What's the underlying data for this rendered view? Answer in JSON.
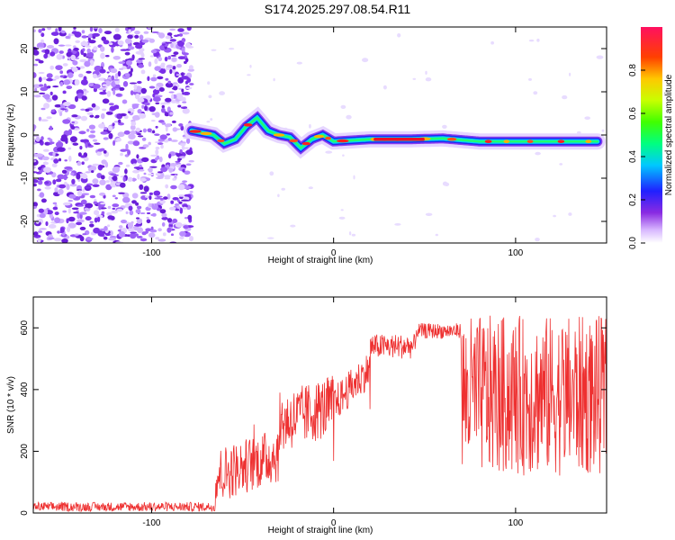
{
  "page": {
    "title": "S174.2025.297.08.54.R11"
  },
  "colors": {
    "snr_line": "#ee3030",
    "axis": "#000000",
    "background": "#ffffff"
  },
  "chart_data": [
    {
      "type": "heatmap",
      "title": "S174.2025.297.08.54.R11",
      "xlabel": "Height of straight line (km)",
      "ylabel": "Frequency (Hz)",
      "xlim": [
        -165,
        150
      ],
      "ylim": [
        -25,
        25
      ],
      "xticks": [
        -100,
        0,
        100
      ],
      "xtick_labels": [
        "-100",
        "0",
        "100"
      ],
      "yticks": [
        -20,
        -10,
        0,
        10,
        20
      ],
      "ytick_labels": [
        "-20",
        "-10",
        "0",
        "10",
        "20"
      ],
      "colorbar": {
        "label": "Normalized spectral amplitude",
        "range": [
          0,
          1
        ],
        "ticks": [
          0.0,
          0.2,
          0.4,
          0.6,
          0.8
        ],
        "tick_labels": [
          "0.0",
          "0.2",
          "0.4",
          "0.6",
          "0.8"
        ]
      },
      "noise_region_x": [
        -165,
        -78
      ],
      "tone_track": {
        "x": [
          -78,
          -72,
          -66,
          -60,
          -54,
          -48,
          -42,
          -36,
          -30,
          -24,
          -18,
          -12,
          -6,
          0,
          20,
          40,
          60,
          80,
          100,
          120,
          145
        ],
        "freq_hz": [
          1,
          0.5,
          0,
          -2,
          -1,
          2,
          4,
          1,
          0,
          -0.5,
          -3,
          -1,
          0,
          -1.5,
          -1,
          -1,
          -0.8,
          -1.5,
          -1.5,
          -1.5,
          -1.5
        ]
      }
    },
    {
      "type": "line",
      "xlabel": "Height of straight line (km)",
      "ylabel": "SNR (10 * v/v)",
      "xlim": [
        -165,
        150
      ],
      "ylim": [
        0,
        700
      ],
      "xticks": [
        -100,
        0,
        100
      ],
      "xtick_labels": [
        "-100",
        "0",
        "100"
      ],
      "yticks": [
        0,
        200,
        400,
        600
      ],
      "ytick_labels": [
        "0",
        "200",
        "400",
        "600"
      ],
      "series": [
        {
          "name": "SNR",
          "segments": [
            {
              "x_range": [
                -165,
                -65
              ],
              "baseline": 20,
              "noise": 15
            },
            {
              "x_range": [
                -65,
                -30
              ],
              "baseline": 120,
              "noise": 90
            },
            {
              "x_range": [
                -30,
                0
              ],
              "baseline": 220,
              "noise": 100
            },
            {
              "x_range": [
                0,
                20
              ],
              "baseline": 350,
              "noise": 60
            },
            {
              "x_range": [
                20,
                45
              ],
              "baseline": 540,
              "noise": 40
            },
            {
              "x_range": [
                45,
                70
              ],
              "baseline": 590,
              "noise": 25
            },
            {
              "x_range": [
                70,
                150
              ],
              "baseline": 380,
              "noise": 260
            }
          ]
        }
      ]
    }
  ]
}
